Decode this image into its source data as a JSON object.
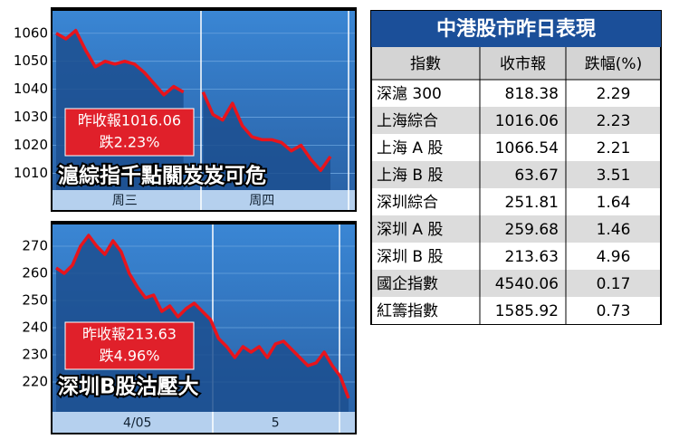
{
  "chart_data": [
    {
      "type": "line",
      "title": "滬綜指千點關岌岌可危",
      "annotations": [
        "昨收報1016.06",
        "跌2.23%"
      ],
      "categories": [
        null,
        null,
        null,
        null,
        null,
        null,
        null,
        "周三",
        null,
        null,
        null,
        null,
        null,
        null,
        null,
        null,
        null,
        null,
        null,
        null,
        null,
        "周四",
        null,
        null,
        null,
        null,
        null,
        null,
        null
      ],
      "series": [
        {
          "color": "#e8141c",
          "values": [
            1060,
            1058,
            1061,
            1054,
            1048,
            1050,
            1049,
            1050,
            1049,
            1046,
            1042,
            1038,
            1041,
            1039,
            null,
            1039,
            1031,
            1029,
            1035,
            1027,
            1023,
            1022,
            1022,
            1021,
            1018,
            1020,
            1015,
            1011,
            1016
          ]
        }
      ],
      "ylim": [
        1004,
        1068
      ],
      "yticks": [
        1010,
        1020,
        1030,
        1040,
        1050,
        1060
      ],
      "grid": true
    },
    {
      "type": "line",
      "title": "深圳B股沽壓大",
      "annotations": [
        "昨收報213.63",
        "跌4.96%"
      ],
      "categories": [
        null,
        null,
        null,
        null,
        null,
        null,
        null,
        null,
        null,
        null,
        "4/05",
        null,
        null,
        null,
        null,
        null,
        null,
        null,
        null,
        null,
        null,
        null,
        null,
        null,
        null,
        null,
        null,
        "5",
        null,
        null,
        null,
        null,
        null,
        null,
        null,
        null,
        null
      ],
      "series": [
        {
          "color": "#e8141c",
          "values": [
            262,
            260,
            263,
            270,
            274,
            270,
            267,
            272,
            268,
            260,
            255,
            251,
            252,
            246,
            248,
            244,
            247,
            249,
            246,
            243,
            236,
            233,
            229,
            233,
            231,
            233,
            229,
            234,
            235,
            232,
            229,
            226,
            227,
            231,
            226,
            222,
            214
          ]
        }
      ],
      "ylim": [
        209,
        278
      ],
      "yticks": [
        220,
        230,
        240,
        250,
        260,
        270
      ],
      "grid": true
    }
  ],
  "table": {
    "title": "中港股市昨日表現",
    "header": [
      "指數",
      "收市報",
      "跌幅(%)"
    ],
    "rows": [
      [
        "深滬 300",
        "818.38",
        "2.29"
      ],
      [
        "上海綜合",
        "1016.06",
        "2.23"
      ],
      [
        "上海 A 股",
        "1066.54",
        "2.21"
      ],
      [
        "上海 B 股",
        "63.67",
        "3.51"
      ],
      [
        "深圳綜合",
        "251.81",
        "1.64"
      ],
      [
        "深圳 A 股",
        "259.68",
        "1.46"
      ],
      [
        "深圳 B 股",
        "213.63",
        "4.96"
      ],
      [
        "國企指數",
        "4540.06",
        "0.17"
      ],
      [
        "紅籌指數",
        "1585.92",
        "0.73"
      ]
    ]
  }
}
